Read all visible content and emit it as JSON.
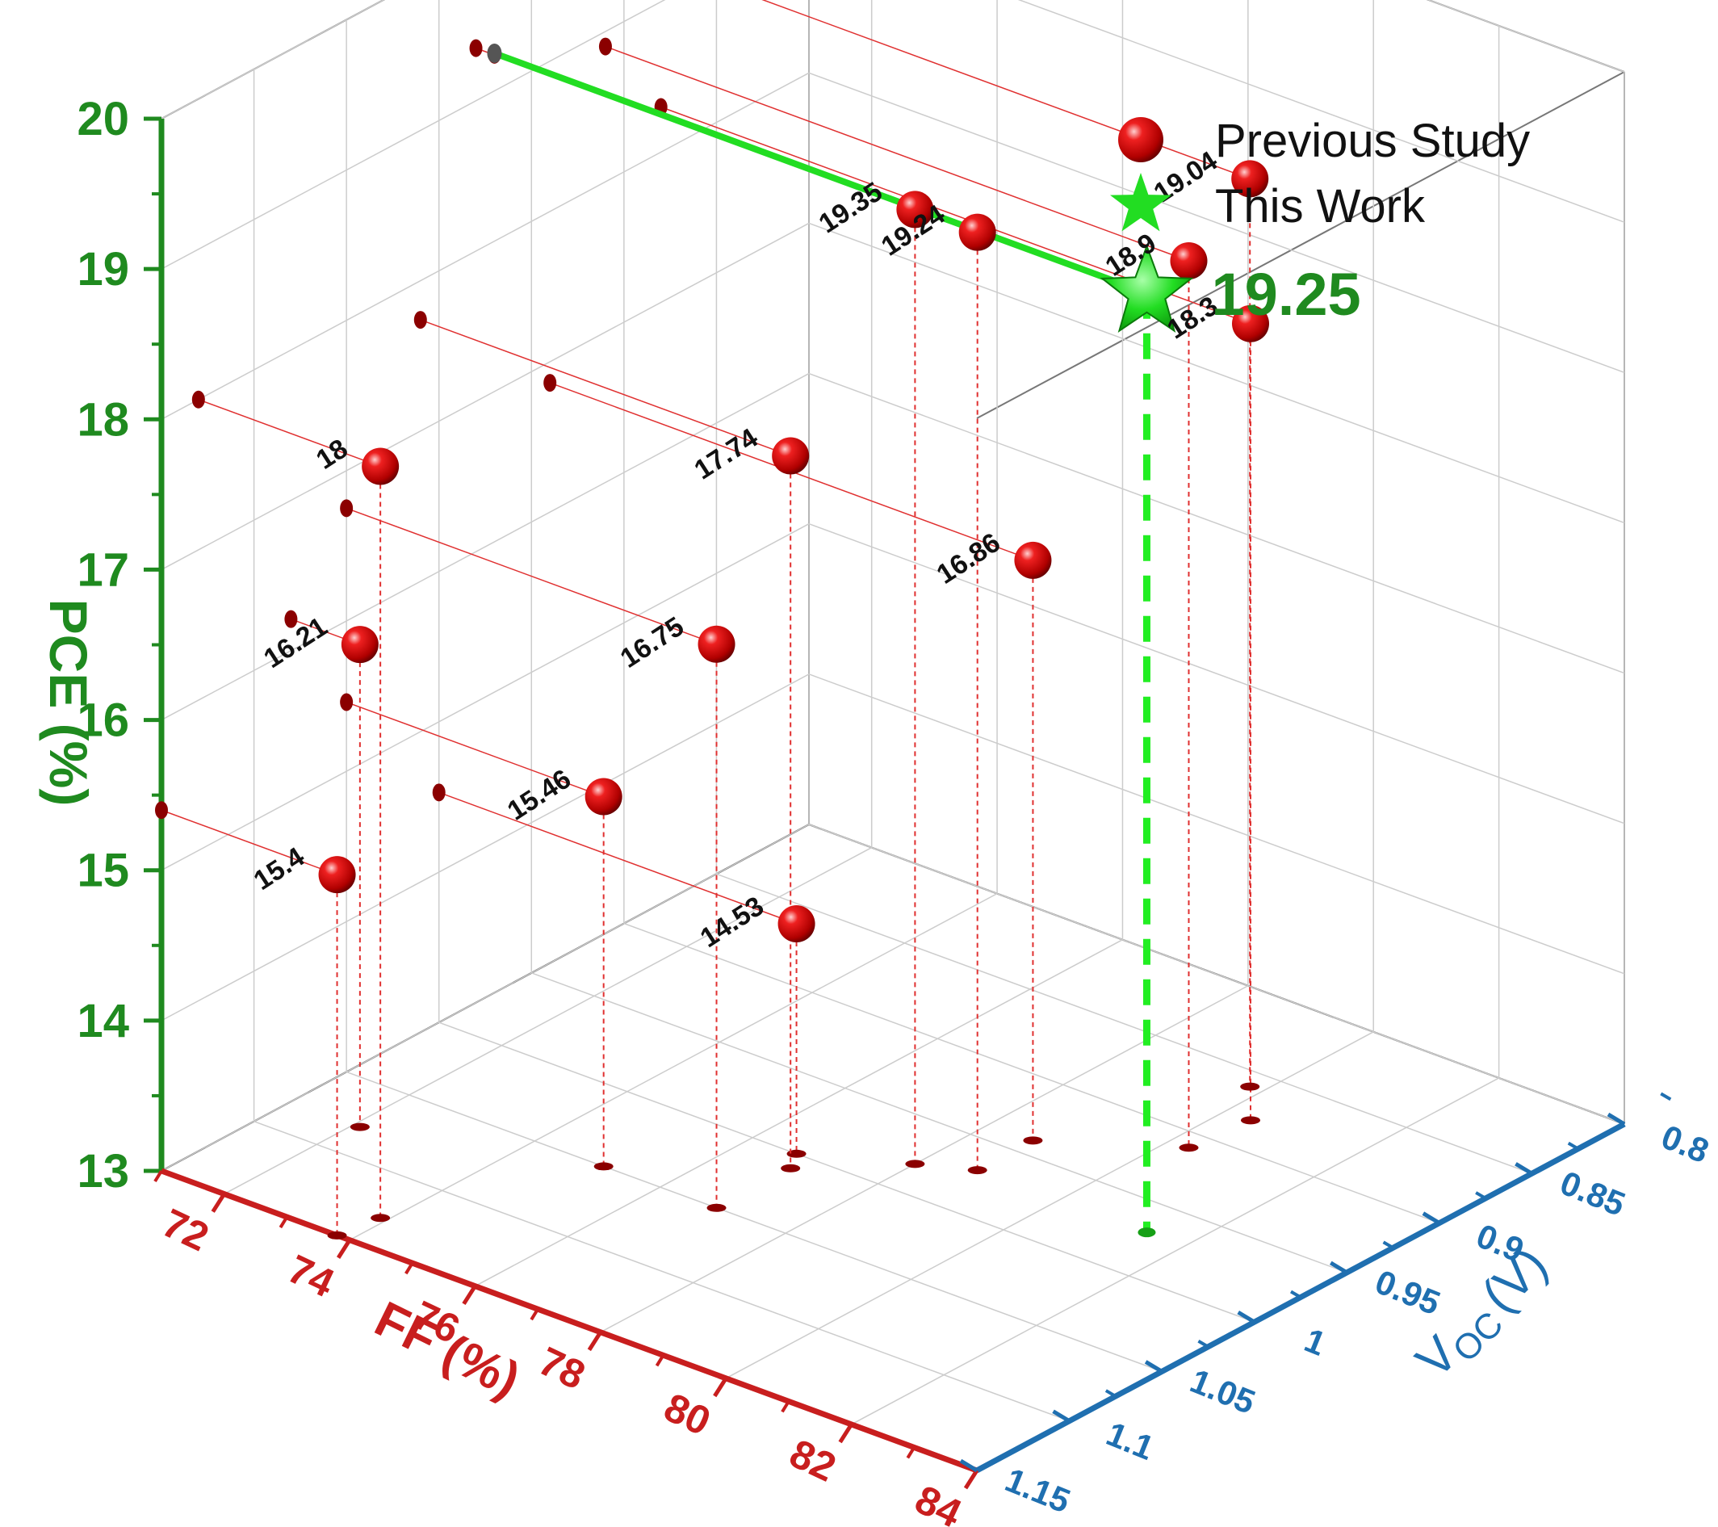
{
  "chart_data": {
    "type": "scatter3d",
    "zlabel": "PCE (%)",
    "xlabel": "FF (%)",
    "ylabel_main": "V",
    "ylabel_sub": "OC",
    "ylabel_unit": "(V)",
    "zlim": [
      13,
      20
    ],
    "xlim": [
      71,
      84
    ],
    "ylim": [
      0.8,
      1.15
    ],
    "z_ticks": [
      "13",
      "14",
      "15",
      "16",
      "17",
      "18",
      "19",
      "20"
    ],
    "x_ticks": [
      "72",
      "74",
      "76",
      "78",
      "80",
      "82",
      "84"
    ],
    "y_ticks": [
      "0.8",
      "0.85",
      "0.9",
      "0.95",
      "1",
      "1.05",
      "1.1",
      "1.15"
    ],
    "grid": true,
    "legend_position": "top-right",
    "series": [
      {
        "name": "Previous Study",
        "color": "#d81414",
        "points": [
          {
            "label": "19.35",
            "ff": 78.0,
            "voc": 0.98,
            "pce": 19.35
          },
          {
            "label": "19.24",
            "ff": 78.7,
            "voc": 0.97,
            "pce": 19.24
          },
          {
            "label": "18.9",
            "ff": 80.3,
            "voc": 0.91,
            "pce": 18.9
          },
          {
            "label": "19.04",
            "ff": 79.8,
            "voc": 0.86,
            "pce": 19.04
          },
          {
            "label": "18.3",
            "ff": 80.4,
            "voc": 0.88,
            "pce": 18.3
          },
          {
            "label": "18",
            "ff": 73.9,
            "voc": 1.13,
            "pce": 18.0
          },
          {
            "label": "17.74",
            "ff": 76.9,
            "voc": 1.01,
            "pce": 17.74
          },
          {
            "label": "16.21",
            "ff": 72.1,
            "voc": 1.08,
            "pce": 16.21
          },
          {
            "label": "16.75",
            "ff": 76.9,
            "voc": 1.05,
            "pce": 16.75
          },
          {
            "label": "16.86",
            "ff": 78.7,
            "voc": 0.94,
            "pce": 16.86
          },
          {
            "label": "15.46",
            "ff": 75.1,
            "voc": 1.05,
            "pce": 15.46
          },
          {
            "label": "15.4",
            "ff": 73.8,
            "voc": 1.15,
            "pce": 15.4
          },
          {
            "label": "14.53",
            "ff": 76.7,
            "voc": 1.0,
            "pce": 14.53
          }
        ]
      },
      {
        "name": "This Work",
        "color": "#22dd22",
        "points": [
          {
            "label": "19.25",
            "ff": 81.4,
            "voc": 0.97,
            "pce": 19.25
          }
        ]
      }
    ]
  }
}
